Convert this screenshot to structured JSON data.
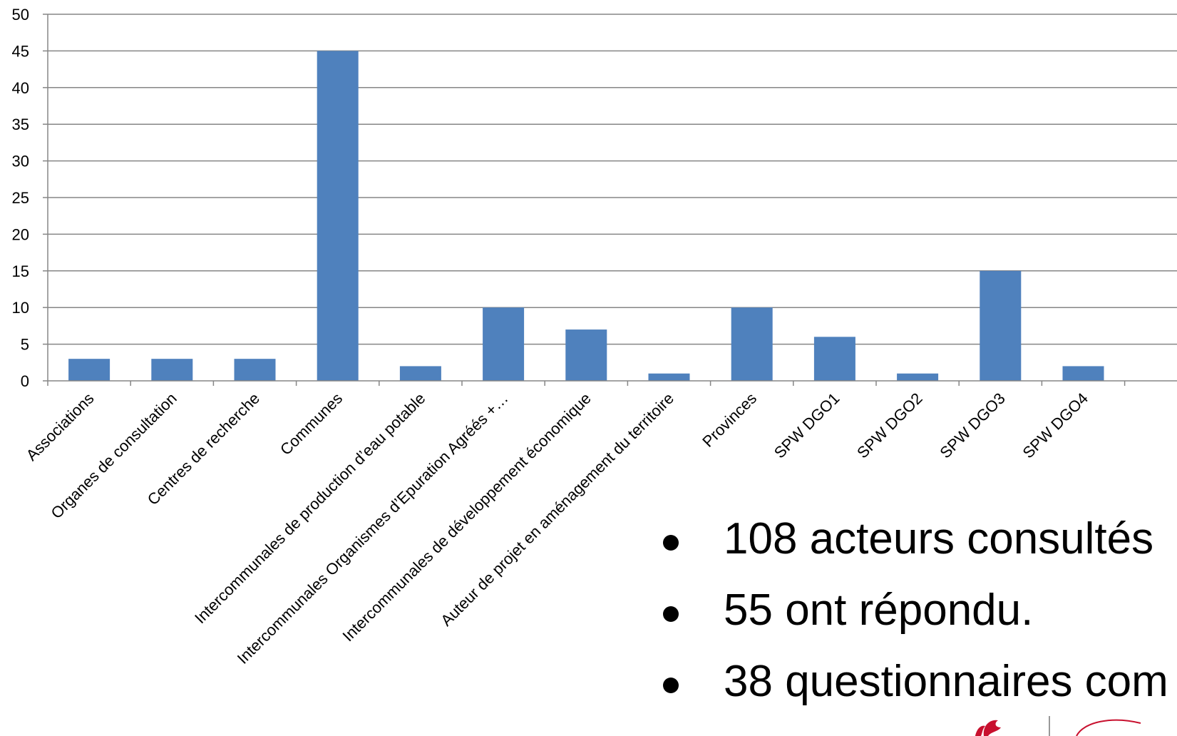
{
  "chart_data": {
    "type": "bar",
    "categories": [
      "Associations",
      "Organes de consultation",
      "Centres de recherche",
      "Communes",
      "Intercommunales de production d’eau potable",
      "Intercommunales Organismes d’Epuration Agréés +…",
      "Intercommunales de développement économique",
      "Auteur de projet en aménagement du territoire",
      "Provinces",
      "SPW DGO1",
      "SPW DGO2",
      "SPW DGO3",
      "SPW DGO4"
    ],
    "values": [
      3,
      3,
      3,
      45,
      2,
      10,
      7,
      1,
      10,
      6,
      1,
      15,
      2
    ],
    "ylim": [
      0,
      50
    ],
    "yticks": [
      0,
      5,
      10,
      15,
      20,
      25,
      30,
      35,
      40,
      45,
      50
    ],
    "grid": true,
    "bar_color": "#4F81BD",
    "grid_color": "#868686",
    "title": "",
    "xlabel": "",
    "ylabel": ""
  },
  "bullets": [
    "108 acteurs consultés",
    "55 ont répondu.",
    "38 questionnaires com"
  ],
  "colors": {
    "logo_red": "#C8102E"
  }
}
